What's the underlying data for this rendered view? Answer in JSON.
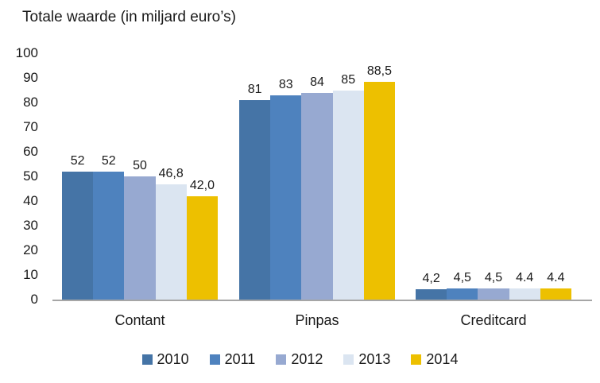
{
  "chart_data": {
    "type": "bar",
    "title": "Totale waarde (in miljard euro’s)",
    "categories": [
      "Contant",
      "Pinpas",
      "Creditcard"
    ],
    "series": [
      {
        "name": "2010",
        "color": "#4574A6",
        "values": [
          52,
          81,
          4.2
        ],
        "labels": [
          "52",
          "81",
          "4,2"
        ]
      },
      {
        "name": "2011",
        "color": "#4E82BE",
        "values": [
          52,
          83,
          4.5
        ],
        "labels": [
          "52",
          "83",
          "4,5"
        ]
      },
      {
        "name": "2012",
        "color": "#97A9D1",
        "values": [
          50,
          84,
          4.5
        ],
        "labels": [
          "50",
          "84",
          "4,5"
        ]
      },
      {
        "name": "2013",
        "color": "#DBE5F1",
        "values": [
          46.8,
          85,
          4.4
        ],
        "labels": [
          "46,8",
          "85",
          "4.4"
        ]
      },
      {
        "name": "2014",
        "color": "#EDC000",
        "values": [
          42.0,
          88.5,
          4.4
        ],
        "labels": [
          "42,0",
          "88,5",
          "4.4"
        ]
      }
    ],
    "ylim": [
      0,
      100
    ],
    "ytick_step": 10,
    "xlabel": "",
    "ylabel": "",
    "grid": false,
    "legend_position": "bottom",
    "axis_line_color": "#a6a6a6",
    "text_color": "#1a1a1a",
    "background_color": "#ffffff"
  }
}
